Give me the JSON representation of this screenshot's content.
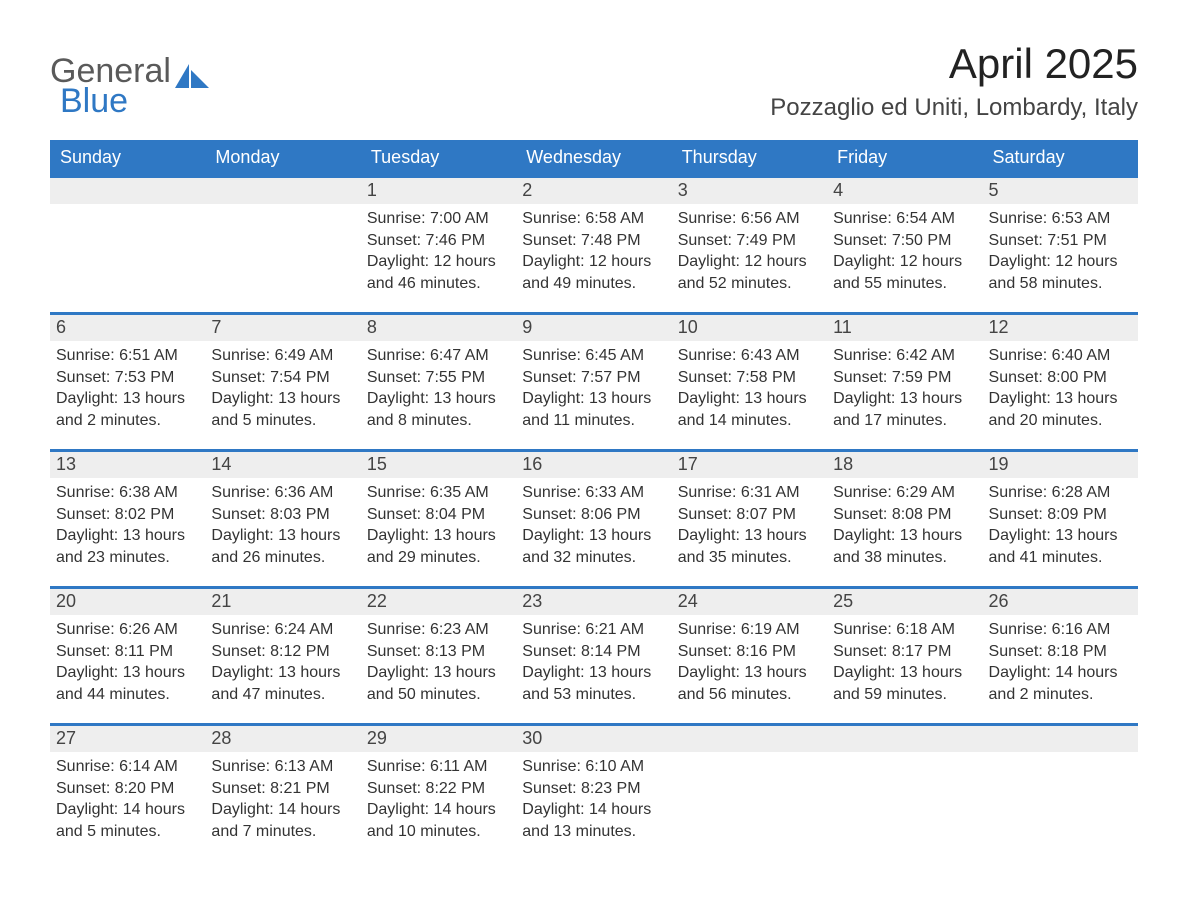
{
  "branding": {
    "logo_word1": "General",
    "logo_word2": "Blue",
    "logo_general_color": "#5a5a5a",
    "logo_blue_color": "#2f78c4",
    "sail_color": "#2f78c4"
  },
  "title": "April 2025",
  "subtitle": "Pozzaglio ed Uniti, Lombardy, Italy",
  "colors": {
    "header_bg": "#2f78c4",
    "header_text": "#ffffff",
    "week_border": "#2f78c4",
    "daynum_bg": "#eeeeee",
    "page_bg": "#ffffff",
    "body_text": "#333333"
  },
  "day_headers": [
    "Sunday",
    "Monday",
    "Tuesday",
    "Wednesday",
    "Thursday",
    "Friday",
    "Saturday"
  ],
  "weekday_indices": [
    0,
    1,
    2,
    3,
    4,
    5,
    6
  ],
  "weeks": [
    {
      "days": [
        {
          "empty": true
        },
        {
          "empty": true
        },
        {
          "num": "1",
          "sunrise": "Sunrise: 7:00 AM",
          "sunset": "Sunset: 7:46 PM",
          "daylight1": "Daylight: 12 hours",
          "daylight2": "and 46 minutes."
        },
        {
          "num": "2",
          "sunrise": "Sunrise: 6:58 AM",
          "sunset": "Sunset: 7:48 PM",
          "daylight1": "Daylight: 12 hours",
          "daylight2": "and 49 minutes."
        },
        {
          "num": "3",
          "sunrise": "Sunrise: 6:56 AM",
          "sunset": "Sunset: 7:49 PM",
          "daylight1": "Daylight: 12 hours",
          "daylight2": "and 52 minutes."
        },
        {
          "num": "4",
          "sunrise": "Sunrise: 6:54 AM",
          "sunset": "Sunset: 7:50 PM",
          "daylight1": "Daylight: 12 hours",
          "daylight2": "and 55 minutes."
        },
        {
          "num": "5",
          "sunrise": "Sunrise: 6:53 AM",
          "sunset": "Sunset: 7:51 PM",
          "daylight1": "Daylight: 12 hours",
          "daylight2": "and 58 minutes."
        }
      ]
    },
    {
      "days": [
        {
          "num": "6",
          "sunrise": "Sunrise: 6:51 AM",
          "sunset": "Sunset: 7:53 PM",
          "daylight1": "Daylight: 13 hours",
          "daylight2": "and 2 minutes."
        },
        {
          "num": "7",
          "sunrise": "Sunrise: 6:49 AM",
          "sunset": "Sunset: 7:54 PM",
          "daylight1": "Daylight: 13 hours",
          "daylight2": "and 5 minutes."
        },
        {
          "num": "8",
          "sunrise": "Sunrise: 6:47 AM",
          "sunset": "Sunset: 7:55 PM",
          "daylight1": "Daylight: 13 hours",
          "daylight2": "and 8 minutes."
        },
        {
          "num": "9",
          "sunrise": "Sunrise: 6:45 AM",
          "sunset": "Sunset: 7:57 PM",
          "daylight1": "Daylight: 13 hours",
          "daylight2": "and 11 minutes."
        },
        {
          "num": "10",
          "sunrise": "Sunrise: 6:43 AM",
          "sunset": "Sunset: 7:58 PM",
          "daylight1": "Daylight: 13 hours",
          "daylight2": "and 14 minutes."
        },
        {
          "num": "11",
          "sunrise": "Sunrise: 6:42 AM",
          "sunset": "Sunset: 7:59 PM",
          "daylight1": "Daylight: 13 hours",
          "daylight2": "and 17 minutes."
        },
        {
          "num": "12",
          "sunrise": "Sunrise: 6:40 AM",
          "sunset": "Sunset: 8:00 PM",
          "daylight1": "Daylight: 13 hours",
          "daylight2": "and 20 minutes."
        }
      ]
    },
    {
      "days": [
        {
          "num": "13",
          "sunrise": "Sunrise: 6:38 AM",
          "sunset": "Sunset: 8:02 PM",
          "daylight1": "Daylight: 13 hours",
          "daylight2": "and 23 minutes."
        },
        {
          "num": "14",
          "sunrise": "Sunrise: 6:36 AM",
          "sunset": "Sunset: 8:03 PM",
          "daylight1": "Daylight: 13 hours",
          "daylight2": "and 26 minutes."
        },
        {
          "num": "15",
          "sunrise": "Sunrise: 6:35 AM",
          "sunset": "Sunset: 8:04 PM",
          "daylight1": "Daylight: 13 hours",
          "daylight2": "and 29 minutes."
        },
        {
          "num": "16",
          "sunrise": "Sunrise: 6:33 AM",
          "sunset": "Sunset: 8:06 PM",
          "daylight1": "Daylight: 13 hours",
          "daylight2": "and 32 minutes."
        },
        {
          "num": "17",
          "sunrise": "Sunrise: 6:31 AM",
          "sunset": "Sunset: 8:07 PM",
          "daylight1": "Daylight: 13 hours",
          "daylight2": "and 35 minutes."
        },
        {
          "num": "18",
          "sunrise": "Sunrise: 6:29 AM",
          "sunset": "Sunset: 8:08 PM",
          "daylight1": "Daylight: 13 hours",
          "daylight2": "and 38 minutes."
        },
        {
          "num": "19",
          "sunrise": "Sunrise: 6:28 AM",
          "sunset": "Sunset: 8:09 PM",
          "daylight1": "Daylight: 13 hours",
          "daylight2": "and 41 minutes."
        }
      ]
    },
    {
      "days": [
        {
          "num": "20",
          "sunrise": "Sunrise: 6:26 AM",
          "sunset": "Sunset: 8:11 PM",
          "daylight1": "Daylight: 13 hours",
          "daylight2": "and 44 minutes."
        },
        {
          "num": "21",
          "sunrise": "Sunrise: 6:24 AM",
          "sunset": "Sunset: 8:12 PM",
          "daylight1": "Daylight: 13 hours",
          "daylight2": "and 47 minutes."
        },
        {
          "num": "22",
          "sunrise": "Sunrise: 6:23 AM",
          "sunset": "Sunset: 8:13 PM",
          "daylight1": "Daylight: 13 hours",
          "daylight2": "and 50 minutes."
        },
        {
          "num": "23",
          "sunrise": "Sunrise: 6:21 AM",
          "sunset": "Sunset: 8:14 PM",
          "daylight1": "Daylight: 13 hours",
          "daylight2": "and 53 minutes."
        },
        {
          "num": "24",
          "sunrise": "Sunrise: 6:19 AM",
          "sunset": "Sunset: 8:16 PM",
          "daylight1": "Daylight: 13 hours",
          "daylight2": "and 56 minutes."
        },
        {
          "num": "25",
          "sunrise": "Sunrise: 6:18 AM",
          "sunset": "Sunset: 8:17 PM",
          "daylight1": "Daylight: 13 hours",
          "daylight2": "and 59 minutes."
        },
        {
          "num": "26",
          "sunrise": "Sunrise: 6:16 AM",
          "sunset": "Sunset: 8:18 PM",
          "daylight1": "Daylight: 14 hours",
          "daylight2": "and 2 minutes."
        }
      ]
    },
    {
      "days": [
        {
          "num": "27",
          "sunrise": "Sunrise: 6:14 AM",
          "sunset": "Sunset: 8:20 PM",
          "daylight1": "Daylight: 14 hours",
          "daylight2": "and 5 minutes."
        },
        {
          "num": "28",
          "sunrise": "Sunrise: 6:13 AM",
          "sunset": "Sunset: 8:21 PM",
          "daylight1": "Daylight: 14 hours",
          "daylight2": "and 7 minutes."
        },
        {
          "num": "29",
          "sunrise": "Sunrise: 6:11 AM",
          "sunset": "Sunset: 8:22 PM",
          "daylight1": "Daylight: 14 hours",
          "daylight2": "and 10 minutes."
        },
        {
          "num": "30",
          "sunrise": "Sunrise: 6:10 AM",
          "sunset": "Sunset: 8:23 PM",
          "daylight1": "Daylight: 14 hours",
          "daylight2": "and 13 minutes."
        },
        {
          "empty": true
        },
        {
          "empty": true
        },
        {
          "empty": true
        }
      ]
    }
  ]
}
